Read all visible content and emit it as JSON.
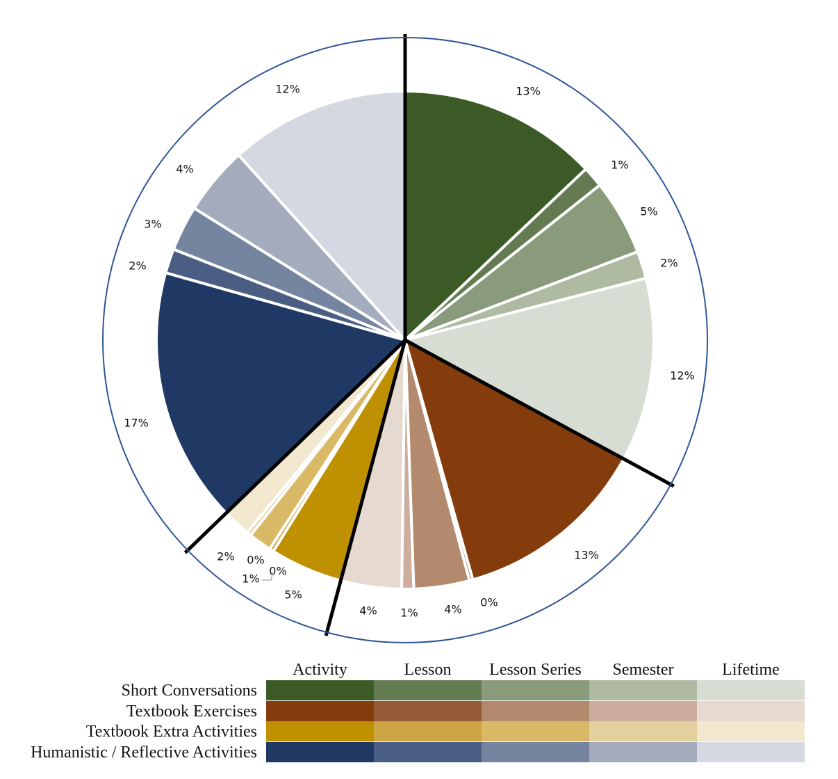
{
  "chart_data": {
    "type": "pie",
    "title": "",
    "legend_position": "bottom",
    "column_headers": [
      "Activity",
      "Lesson",
      "Lesson Series",
      "Semester",
      "Lifetime"
    ],
    "row_labels": [
      "Short Conversations",
      "Textbook Exercises",
      "Textbook Extra Activities",
      "Humanistic / Reflective Activities"
    ],
    "colors": [
      [
        "#3b5a25",
        "#647b52",
        "#8a9b7b",
        "#aebaa2",
        "#d8ddd3"
      ],
      [
        "#843c0c",
        "#955a37",
        "#b38a6d",
        "#cdae9e",
        "#e6d9d0"
      ],
      [
        "#bf9000",
        "#cca443",
        "#d9b866",
        "#e3d09f",
        "#f2e8cf"
      ],
      [
        "#203864",
        "#4a5e84",
        "#75859f",
        "#a3abbd",
        "#d3d8e1"
      ]
    ],
    "slices": [
      {
        "group": "Short Conversations",
        "scope": "Activity",
        "value": 13,
        "label": "13%"
      },
      {
        "group": "Short Conversations",
        "scope": "Lesson",
        "value": 1,
        "label": "1%"
      },
      {
        "group": "Short Conversations",
        "scope": "Lesson Series",
        "value": 5,
        "label": "5%"
      },
      {
        "group": "Short Conversations",
        "scope": "Semester",
        "value": 2,
        "label": "2%"
      },
      {
        "group": "Short Conversations",
        "scope": "Lifetime",
        "value": 12,
        "label": "12%"
      },
      {
        "group": "Textbook Exercises",
        "scope": "Activity",
        "value": 13,
        "label": "13%"
      },
      {
        "group": "Textbook Exercises",
        "scope": "Lesson",
        "value": 0,
        "label": "0%"
      },
      {
        "group": "Textbook Exercises",
        "scope": "Lesson Series",
        "value": 4,
        "label": "4%"
      },
      {
        "group": "Textbook Exercises",
        "scope": "Semester",
        "value": 1,
        "label": "1%"
      },
      {
        "group": "Textbook Exercises",
        "scope": "Lifetime",
        "value": 4,
        "label": "4%"
      },
      {
        "group": "Textbook Extra Activities",
        "scope": "Activity",
        "value": 5,
        "label": "5%"
      },
      {
        "group": "Textbook Extra Activities",
        "scope": "Lesson",
        "value": 0,
        "label": "0%"
      },
      {
        "group": "Textbook Extra Activities",
        "scope": "Lesson Series",
        "value": 1,
        "label": "1%"
      },
      {
        "group": "Textbook Extra Activities",
        "scope": "Semester",
        "value": 0,
        "label": "0%"
      },
      {
        "group": "Textbook Extra Activities",
        "scope": "Lifetime",
        "value": 2,
        "label": "2%"
      },
      {
        "group": "Humanistic / Reflective Activities",
        "scope": "Activity",
        "value": 17,
        "label": "17%"
      },
      {
        "group": "Humanistic / Reflective Activities",
        "scope": "Lesson",
        "value": 2,
        "label": "2%"
      },
      {
        "group": "Humanistic / Reflective Activities",
        "scope": "Lesson Series",
        "value": 3,
        "label": "3%"
      },
      {
        "group": "Humanistic / Reflective Activities",
        "scope": "Semester",
        "value": 4,
        "label": "4%"
      },
      {
        "group": "Humanistic / Reflective Activities",
        "scope": "Lifetime",
        "value": 12,
        "label": "12%"
      }
    ],
    "slice_angles_deg": [
      [
        0,
        46.6
      ],
      [
        46.6,
        51.5
      ],
      [
        51.5,
        69.2
      ],
      [
        69.2,
        75.6
      ],
      [
        75.6,
        118.5
      ],
      [
        118.5,
        164.2
      ],
      [
        164.2,
        165.0
      ],
      [
        165.0,
        178.0
      ],
      [
        178.0,
        180.8
      ],
      [
        180.8,
        195.0
      ],
      [
        195.0,
        212.0
      ],
      [
        212.0,
        213.0
      ],
      [
        213.0,
        218.4
      ],
      [
        218.4,
        219.4
      ],
      [
        219.4,
        226.0
      ],
      [
        226.0,
        285.7
      ],
      [
        285.7,
        291.4
      ],
      [
        291.4,
        302.0
      ],
      [
        302.0,
        318.0
      ],
      [
        318.0,
        360.0
      ]
    ],
    "group_boundaries_deg": [
      0,
      118.5,
      195.0,
      226.0
    ],
    "outer_ring_color": "#2f5597"
  }
}
